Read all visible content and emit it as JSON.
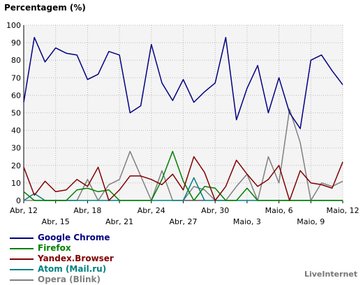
{
  "chart_data": {
    "type": "line",
    "title": "Percentagem (%)",
    "ylim": [
      0,
      100
    ],
    "yticks": [
      0,
      10,
      20,
      30,
      40,
      50,
      60,
      70,
      80,
      90,
      100
    ],
    "grid": true,
    "legend_position": "bottom-left",
    "x_labels_row1": [
      "Abr, 12",
      "Abr, 18",
      "Abr, 24",
      "Abr, 30",
      "Maio, 6",
      "Maio, 12"
    ],
    "x_labels_row2": [
      "Abr, 15",
      "Abr, 21",
      "Abr, 27",
      "Maio, 3",
      "Maio, 9"
    ],
    "x": [
      "Abr, 12",
      "Abr, 13",
      "Abr, 14",
      "Abr, 15",
      "Abr, 16",
      "Abr, 17",
      "Abr, 18",
      "Abr, 19",
      "Abr, 20",
      "Abr, 21",
      "Abr, 22",
      "Abr, 23",
      "Abr, 24",
      "Abr, 25",
      "Abr, 26",
      "Abr, 27",
      "Abr, 28",
      "Abr, 29",
      "Abr, 30",
      "Maio, 1",
      "Maio, 2",
      "Maio, 3",
      "Maio, 4",
      "Maio, 5",
      "Maio, 6",
      "Maio, 7",
      "Maio, 8",
      "Maio, 9",
      "Maio, 10",
      "Maio, 11",
      "Maio, 12"
    ],
    "series": [
      {
        "name": "Google Chrome",
        "color": "#000080",
        "values": [
          56,
          93,
          79,
          87,
          84,
          83,
          69,
          72,
          85,
          83,
          50,
          54,
          89,
          67,
          57,
          69,
          56,
          62,
          67,
          93,
          46,
          64,
          77,
          50,
          70,
          50,
          41,
          80,
          83,
          74,
          66
        ]
      },
      {
        "name": "Firefox",
        "color": "#008000",
        "values": [
          5,
          0,
          0,
          0,
          0,
          6,
          7,
          5,
          6,
          0,
          0,
          0,
          0,
          12,
          28,
          11,
          0,
          8,
          7,
          0,
          0,
          7,
          0,
          0,
          0,
          0,
          0,
          0,
          0,
          0,
          0
        ]
      },
      {
        "name": "Yandex.Browser",
        "color": "#800000",
        "values": [
          19,
          3,
          11,
          5,
          6,
          12,
          8,
          19,
          0,
          6,
          14,
          14,
          12,
          9,
          15,
          6,
          25,
          16,
          0,
          8,
          23,
          15,
          8,
          12,
          20,
          0,
          17,
          10,
          9,
          7,
          22
        ]
      },
      {
        "name": "Atom (Mail.ru)",
        "color": "#008080",
        "values": [
          0,
          4,
          0,
          0,
          0,
          0,
          0,
          0,
          0,
          0,
          0,
          0,
          0,
          0,
          0,
          0,
          13,
          0,
          0,
          0,
          0,
          0,
          0,
          0,
          0,
          0,
          0,
          0,
          0,
          0,
          0
        ]
      },
      {
        "name": "Opera (Blink)",
        "color": "#808080",
        "values": [
          0,
          0,
          0,
          0,
          0,
          0,
          12,
          0,
          9,
          12,
          28,
          14,
          0,
          17,
          0,
          0,
          8,
          6,
          0,
          0,
          8,
          15,
          0,
          25,
          10,
          52,
          33,
          0,
          10,
          8,
          11
        ]
      }
    ],
    "credit": "LiveInternet"
  }
}
